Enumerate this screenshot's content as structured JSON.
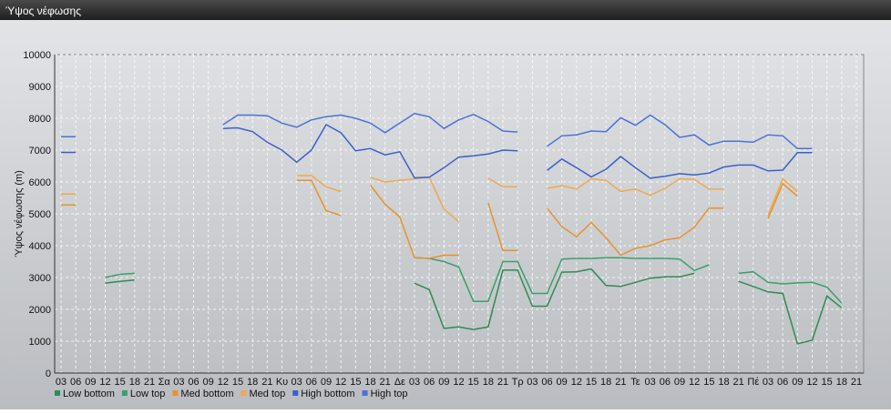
{
  "chart_data": {
    "type": "line",
    "title": "Ύψος νέφωσης",
    "y_label": "Ύψος νέφωσης (m)",
    "categories": [
      "03",
      "06",
      "09",
      "12",
      "15",
      "18",
      "21",
      "Σα",
      "03",
      "06",
      "09",
      "12",
      "15",
      "18",
      "21",
      "Κυ",
      "03",
      "06",
      "09",
      "12",
      "15",
      "18",
      "21",
      "Δε",
      "03",
      "06",
      "09",
      "12",
      "15",
      "18",
      "21",
      "Τρ",
      "03",
      "06",
      "09",
      "12",
      "15",
      "18",
      "21",
      "Τε",
      "03",
      "06",
      "09",
      "12",
      "15",
      "18",
      "21",
      "Πέ",
      "03",
      "06",
      "09",
      "12",
      "15",
      "18",
      "21"
    ],
    "ylim": [
      0,
      10000
    ],
    "yticks": [
      0,
      1000,
      2000,
      3000,
      4000,
      5000,
      6000,
      7000,
      8000,
      9000,
      10000
    ],
    "grid": true,
    "series": [
      {
        "name": "Low bottom",
        "color": "#2e8b57",
        "values": [
          null,
          null,
          null,
          2820,
          2880,
          2920,
          null,
          null,
          null,
          null,
          null,
          null,
          null,
          null,
          null,
          null,
          null,
          null,
          null,
          null,
          null,
          null,
          null,
          null,
          2820,
          2620,
          1400,
          1450,
          1370,
          1450,
          3230,
          3230,
          2100,
          2100,
          3170,
          3180,
          3270,
          2750,
          2720,
          2850,
          2980,
          3020,
          3020,
          3130,
          null,
          null,
          2880,
          2720,
          2550,
          2500,
          920,
          1030,
          2420,
          2050,
          null
        ]
      },
      {
        "name": "Low top",
        "color": "#3a9f6c",
        "values": [
          null,
          null,
          null,
          3000,
          3100,
          3130,
          null,
          null,
          null,
          null,
          null,
          null,
          null,
          null,
          null,
          null,
          null,
          null,
          null,
          null,
          null,
          null,
          null,
          null,
          3620,
          3600,
          3500,
          3330,
          2250,
          2250,
          3500,
          3500,
          2500,
          2500,
          3580,
          3600,
          3600,
          3620,
          3620,
          3600,
          3600,
          3600,
          3580,
          3220,
          3400,
          null,
          3130,
          3180,
          2850,
          2800,
          2830,
          2850,
          2700,
          2200,
          null
        ]
      },
      {
        "name": "Med bottom",
        "color": "#e8922a",
        "values": [
          5280,
          5280,
          null,
          null,
          null,
          null,
          null,
          null,
          null,
          null,
          null,
          null,
          null,
          null,
          null,
          null,
          6050,
          6050,
          5100,
          4950,
          null,
          5900,
          5300,
          4900,
          3620,
          3600,
          3700,
          3700,
          null,
          5350,
          3850,
          3850,
          null,
          5180,
          4600,
          4280,
          4730,
          4250,
          3700,
          3920,
          4000,
          4180,
          4250,
          4580,
          5180,
          5180,
          null,
          null,
          4850,
          5950,
          5550,
          null,
          null,
          null,
          null
        ]
      },
      {
        "name": "Med top",
        "color": "#f0a850",
        "values": [
          5620,
          5620,
          null,
          null,
          null,
          null,
          null,
          null,
          null,
          null,
          null,
          null,
          null,
          null,
          null,
          null,
          6200,
          6200,
          5850,
          5700,
          null,
          6150,
          6000,
          6050,
          6100,
          6150,
          5150,
          4750,
          null,
          6120,
          5850,
          5850,
          null,
          5800,
          5880,
          5780,
          6100,
          6050,
          5700,
          5780,
          5580,
          5800,
          6100,
          6080,
          5780,
          5780,
          null,
          null,
          4950,
          6100,
          5700,
          null,
          null,
          null,
          null
        ]
      },
      {
        "name": "High bottom",
        "color": "#3a5fcd",
        "values": [
          6930,
          6930,
          null,
          null,
          null,
          null,
          null,
          null,
          null,
          null,
          null,
          7680,
          7700,
          7580,
          7250,
          7000,
          6620,
          7000,
          7800,
          7550,
          6980,
          7050,
          6850,
          6950,
          6130,
          6150,
          6450,
          6780,
          6820,
          6880,
          7000,
          6980,
          null,
          6360,
          6720,
          6450,
          6160,
          6400,
          6800,
          6450,
          6120,
          6180,
          6260,
          6220,
          6280,
          6470,
          6530,
          6530,
          6350,
          6370,
          6920,
          6920,
          null,
          null,
          null
        ]
      },
      {
        "name": "High top",
        "color": "#4a72d8",
        "values": [
          7420,
          7420,
          null,
          null,
          null,
          null,
          null,
          null,
          null,
          null,
          null,
          7800,
          8100,
          8100,
          8080,
          7850,
          7720,
          7950,
          8050,
          8100,
          8000,
          7850,
          7550,
          7850,
          8150,
          8050,
          7680,
          7950,
          8120,
          7900,
          7600,
          7570,
          null,
          7120,
          7450,
          7480,
          7600,
          7580,
          8020,
          7780,
          8100,
          7800,
          7400,
          7480,
          7160,
          7280,
          7280,
          7250,
          7480,
          7450,
          7050,
          7050,
          null,
          null,
          null
        ]
      }
    ]
  }
}
